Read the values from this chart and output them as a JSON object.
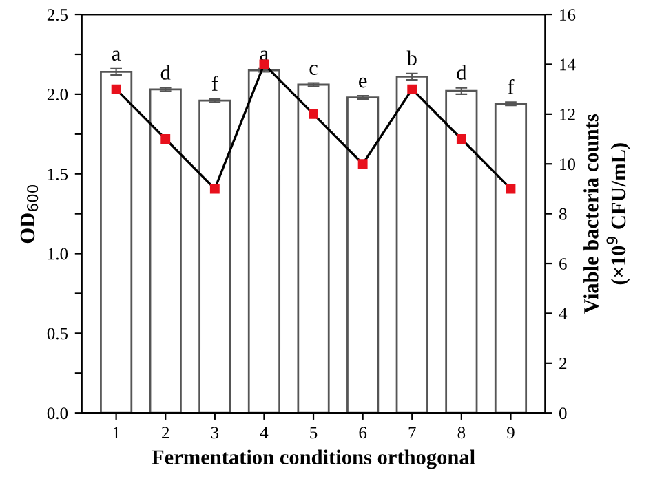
{
  "chart_data": {
    "type": "bar",
    "xlabel": "Fermentation conditions orthogonal",
    "ylabel": "OD$_{600}$",
    "y2label": "Viable bacteria counts\n(×10$^{9}$ CFU/mL)",
    "categories": [
      "1",
      "2",
      "3",
      "4",
      "5",
      "6",
      "7",
      "8",
      "9"
    ],
    "series": [
      {
        "color": "#ffffff",
        "values": [
          2.14,
          2.03,
          1.96,
          2.15,
          2.06,
          1.98,
          2.11,
          2.02,
          1.94
        ],
        "errors": [
          0.02,
          0.01,
          0.01,
          0.01,
          0.01,
          0.01,
          0.02,
          0.02,
          0.01
        ]
      },
      {
        "type": "line",
        "axis": "y2",
        "color": "#e8101c",
        "values": [
          13,
          11,
          9,
          14,
          12,
          10,
          13,
          11,
          9
        ],
        "marker": "square"
      }
    ],
    "ylim": [
      0,
      2.5
    ],
    "yticks": [
      {
        "value": 0,
        "label": "0.0"
      },
      {
        "value": 0.25,
        "label": null
      },
      0.5,
      {
        "value": 0.75,
        "label": null
      },
      {
        "value": 1,
        "label": "1.0"
      },
      {
        "value": 1.25,
        "label": null
      },
      1.5,
      {
        "value": 1.75,
        "label": null
      },
      {
        "value": 2,
        "label": "2.0"
      },
      {
        "value": 2.25,
        "label": null
      },
      2.5
    ],
    "y2lim": [
      0,
      16
    ],
    "y2ticks": [
      0,
      2,
      4,
      6,
      8,
      10,
      12,
      14,
      16
    ],
    "annotations": [
      {
        "text": "a",
        "x": "1",
        "y": 2.16
      },
      {
        "text": "d",
        "x": "2",
        "y": 2.04
      },
      {
        "text": "f",
        "x": "3",
        "y": 1.97
      },
      {
        "text": "a",
        "x": "4",
        "y": 2.16
      },
      {
        "text": "c",
        "x": "5",
        "y": 2.07
      },
      {
        "text": "e",
        "x": "6",
        "y": 1.99
      },
      {
        "text": "b",
        "x": "7",
        "y": 2.13
      },
      {
        "text": "d",
        "x": "8",
        "y": 2.04
      },
      {
        "text": "f",
        "x": "9",
        "y": 1.95
      }
    ]
  }
}
